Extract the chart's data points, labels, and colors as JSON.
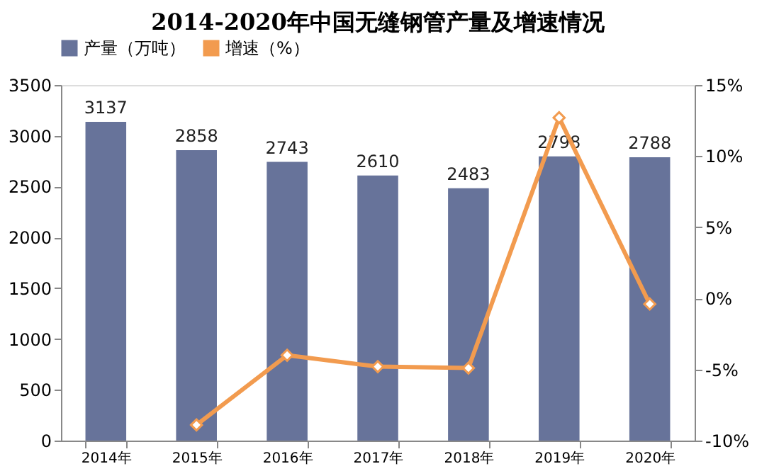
{
  "chart_data": {
    "type": "bar",
    "title": "2014-2020年中国无缝钢管产量及增速情况",
    "categories": [
      "2014年",
      "2015年",
      "2016年",
      "2017年",
      "2018年",
      "2019年",
      "2020年"
    ],
    "series": [
      {
        "name": "产量（万吨）",
        "color": "#67739a",
        "values": [
          3137,
          2858,
          2743,
          2610,
          2483,
          2798,
          2788
        ],
        "value_labels": [
          "3137",
          "2858",
          "2743",
          "2610",
          "2483",
          "2798",
          "2788"
        ]
      },
      {
        "name": "增速（%）",
        "color": "#f29b4f",
        "type": "line",
        "axis": "y2",
        "marker": "diamond",
        "values": [
          null,
          -8.9,
          -4.0,
          -4.8,
          -4.9,
          12.7,
          -0.4
        ]
      }
    ],
    "ylim": [
      0,
      3500
    ],
    "yticks": [
      0,
      500,
      1000,
      1500,
      2000,
      2500,
      3000,
      3500
    ],
    "y2lim": [
      -10,
      15
    ],
    "y2ticks": [
      {
        "value": -10,
        "label": "-10%"
      },
      {
        "value": -5,
        "label": "-5%"
      },
      {
        "value": 0,
        "label": "0%"
      },
      {
        "value": 5,
        "label": "5%"
      },
      {
        "value": 10,
        "label": "10%"
      },
      {
        "value": 15,
        "label": "15%"
      }
    ],
    "legend": "top",
    "grid": false
  }
}
